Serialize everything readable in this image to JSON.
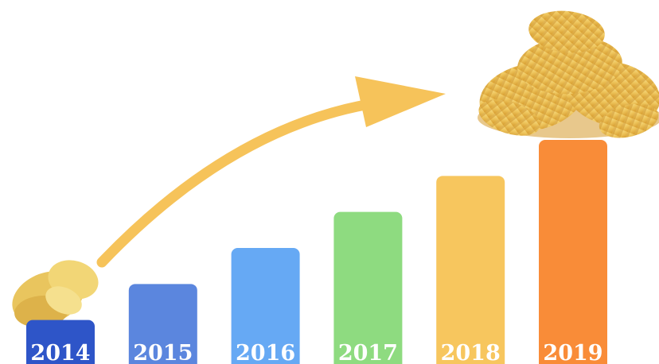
{
  "chart_data": {
    "type": "bar",
    "categories": [
      "2014",
      "2015",
      "2016",
      "2017",
      "2018",
      "2019"
    ],
    "values": [
      1,
      2,
      3,
      4,
      5,
      6
    ],
    "colors": [
      "#2E55C8",
      "#5B86DE",
      "#66A9F4",
      "#8EDB80",
      "#F7C65E",
      "#F98C38"
    ],
    "title": "",
    "xlabel": "",
    "ylabel": "",
    "ylim": [
      0,
      6
    ],
    "grid": false,
    "legend": "none",
    "decorations": {
      "arrow": "growth-arrow",
      "arrow_color": "#F6C35A",
      "small_image": "chips-small-icon",
      "large_image": "chips-pile-icon"
    }
  }
}
